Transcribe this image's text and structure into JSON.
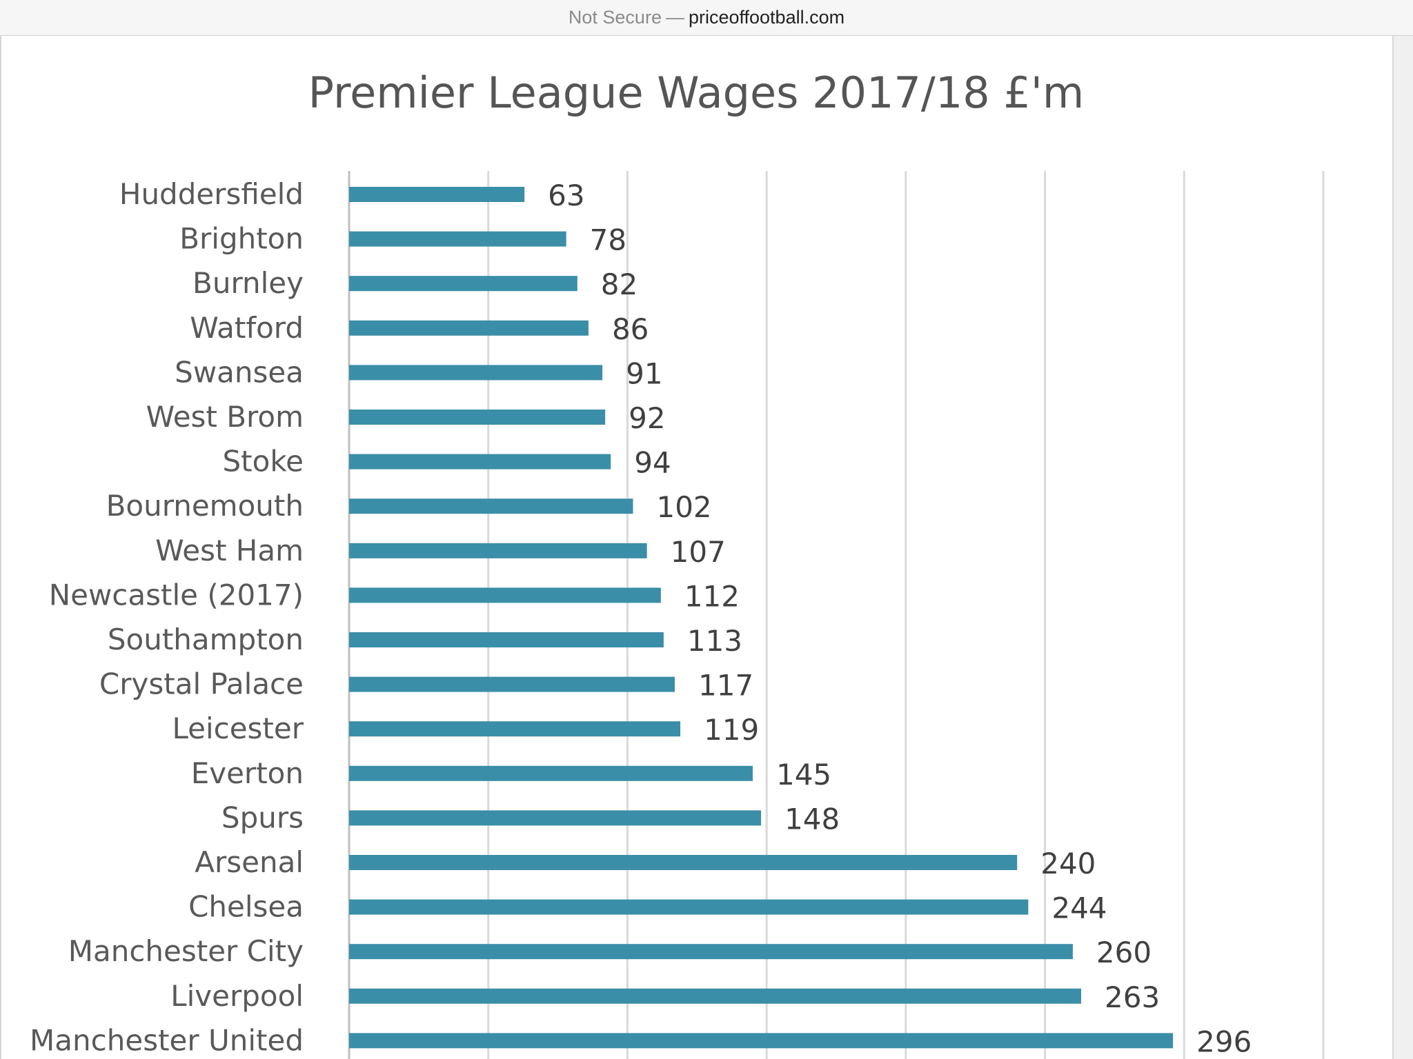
{
  "browser": {
    "security_label": "Not Secure",
    "separator": "—",
    "domain": "priceoffootball.com"
  },
  "colors": {
    "bar": "#3a8ea8",
    "grid": "#d9d9d9",
    "axis": "#bfbfbf"
  },
  "chart_data": {
    "type": "bar",
    "orientation": "horizontal",
    "title": "Premier League Wages 2017/18 £'m",
    "categories": [
      "Huddersfield",
      "Brighton",
      "Burnley",
      "Watford",
      "Swansea",
      "West Brom",
      "Stoke",
      "Bournemouth",
      "West Ham",
      "Newcastle (2017)",
      "Southampton",
      "Crystal Palace",
      "Leicester",
      "Everton",
      "Spurs",
      "Arsenal",
      "Chelsea",
      "Manchester City",
      "Liverpool",
      "Manchester United"
    ],
    "values": [
      63,
      78,
      82,
      86,
      91,
      92,
      94,
      102,
      107,
      112,
      113,
      117,
      119,
      145,
      148,
      240,
      244,
      260,
      263,
      296
    ],
    "xlim": [
      0,
      350
    ],
    "grid": true,
    "data_labels": true
  }
}
